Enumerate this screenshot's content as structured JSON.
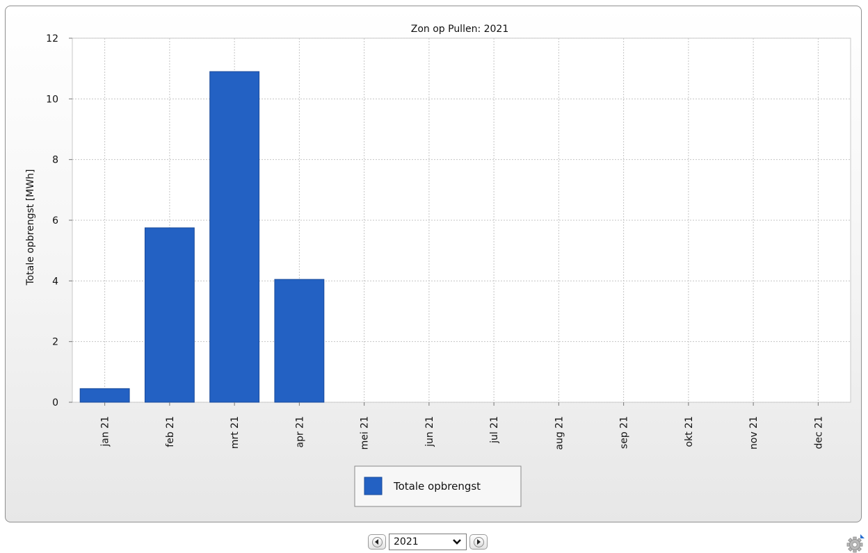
{
  "chart_data": {
    "type": "bar",
    "title": "Zon op Pullen: 2021",
    "xlabel": "",
    "ylabel": "Totale opbrengst [MWh]",
    "categories": [
      "jan 21",
      "feb 21",
      "mrt 21",
      "apr 21",
      "mei 21",
      "jun 21",
      "jul 21",
      "aug 21",
      "sep 21",
      "okt 21",
      "nov 21",
      "dec 21"
    ],
    "series": [
      {
        "name": "Totale opbrengst",
        "values": [
          0.45,
          5.75,
          10.9,
          4.05,
          0,
          0,
          0,
          0,
          0,
          0,
          0,
          0
        ],
        "color": "#2361c3"
      }
    ],
    "ylim": [
      0,
      12
    ],
    "yticks": [
      0,
      2,
      4,
      6,
      8,
      10,
      12
    ],
    "grid": true,
    "legend_position": "bottom"
  },
  "controls": {
    "year_value": "2021",
    "prev_icon": "arrow-left-icon",
    "next_icon": "arrow-right-icon",
    "dropdown_icon": "chevron-down-icon",
    "settings_icon": "gear-icon"
  }
}
